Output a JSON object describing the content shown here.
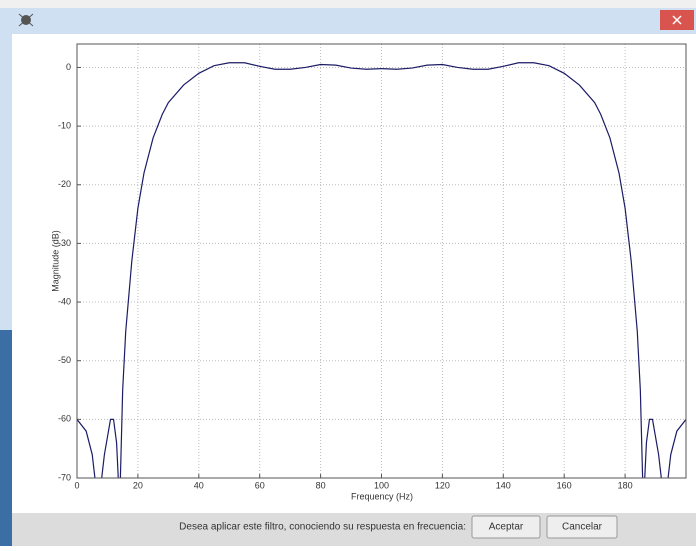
{
  "chart_data": {
    "type": "line",
    "xlabel": "Frequency (Hz)",
    "ylabel": "Magnitude (dB)",
    "x": [
      0,
      3,
      5,
      7,
      9,
      11,
      12,
      13,
      14,
      15,
      16,
      18,
      20,
      22,
      25,
      28,
      30,
      35,
      40,
      45,
      50,
      55,
      60,
      65,
      70,
      75,
      80,
      85,
      90,
      95,
      100,
      105,
      110,
      115,
      120,
      125,
      130,
      135,
      140,
      145,
      150,
      155,
      160,
      165,
      170,
      172,
      175,
      178,
      180,
      182,
      184,
      185,
      186,
      187,
      188,
      189,
      191,
      193,
      195,
      197,
      200
    ],
    "series": [
      {
        "color": "#1c1c66",
        "values": [
          -60,
          -62,
          -66,
          -75,
          -66,
          -60,
          -60,
          -64,
          -75,
          -55,
          -45,
          -33,
          -24,
          -18,
          -12,
          -8,
          -6,
          -3,
          -1,
          0.3,
          0.8,
          0.8,
          0.2,
          -0.3,
          -0.3,
          0,
          0.5,
          0.4,
          -0.1,
          -0.3,
          -0.2,
          -0.3,
          -0.1,
          0.4,
          0.5,
          0,
          -0.3,
          -0.3,
          0.2,
          0.8,
          0.8,
          0.3,
          -1,
          -3,
          -6,
          -8,
          -12,
          -18,
          -24,
          -33,
          -45,
          -55,
          -75,
          -64,
          -60,
          -60,
          -66,
          -75,
          -66,
          -62,
          -60
        ]
      }
    ],
    "xlim": [
      0,
      200
    ],
    "ylim": [
      -70,
      4
    ],
    "xticks": [
      0,
      20,
      40,
      60,
      80,
      100,
      120,
      140,
      160,
      180
    ],
    "yticks": [
      0,
      -10,
      -20,
      -30,
      -40,
      -50,
      -60,
      -70
    ],
    "grid": true
  },
  "dialog": {
    "message": "Desea aplicar este filtro, conociendo su respuesta en frecuencia:",
    "buttons": [
      "Aceptar",
      "Cancelar"
    ]
  }
}
